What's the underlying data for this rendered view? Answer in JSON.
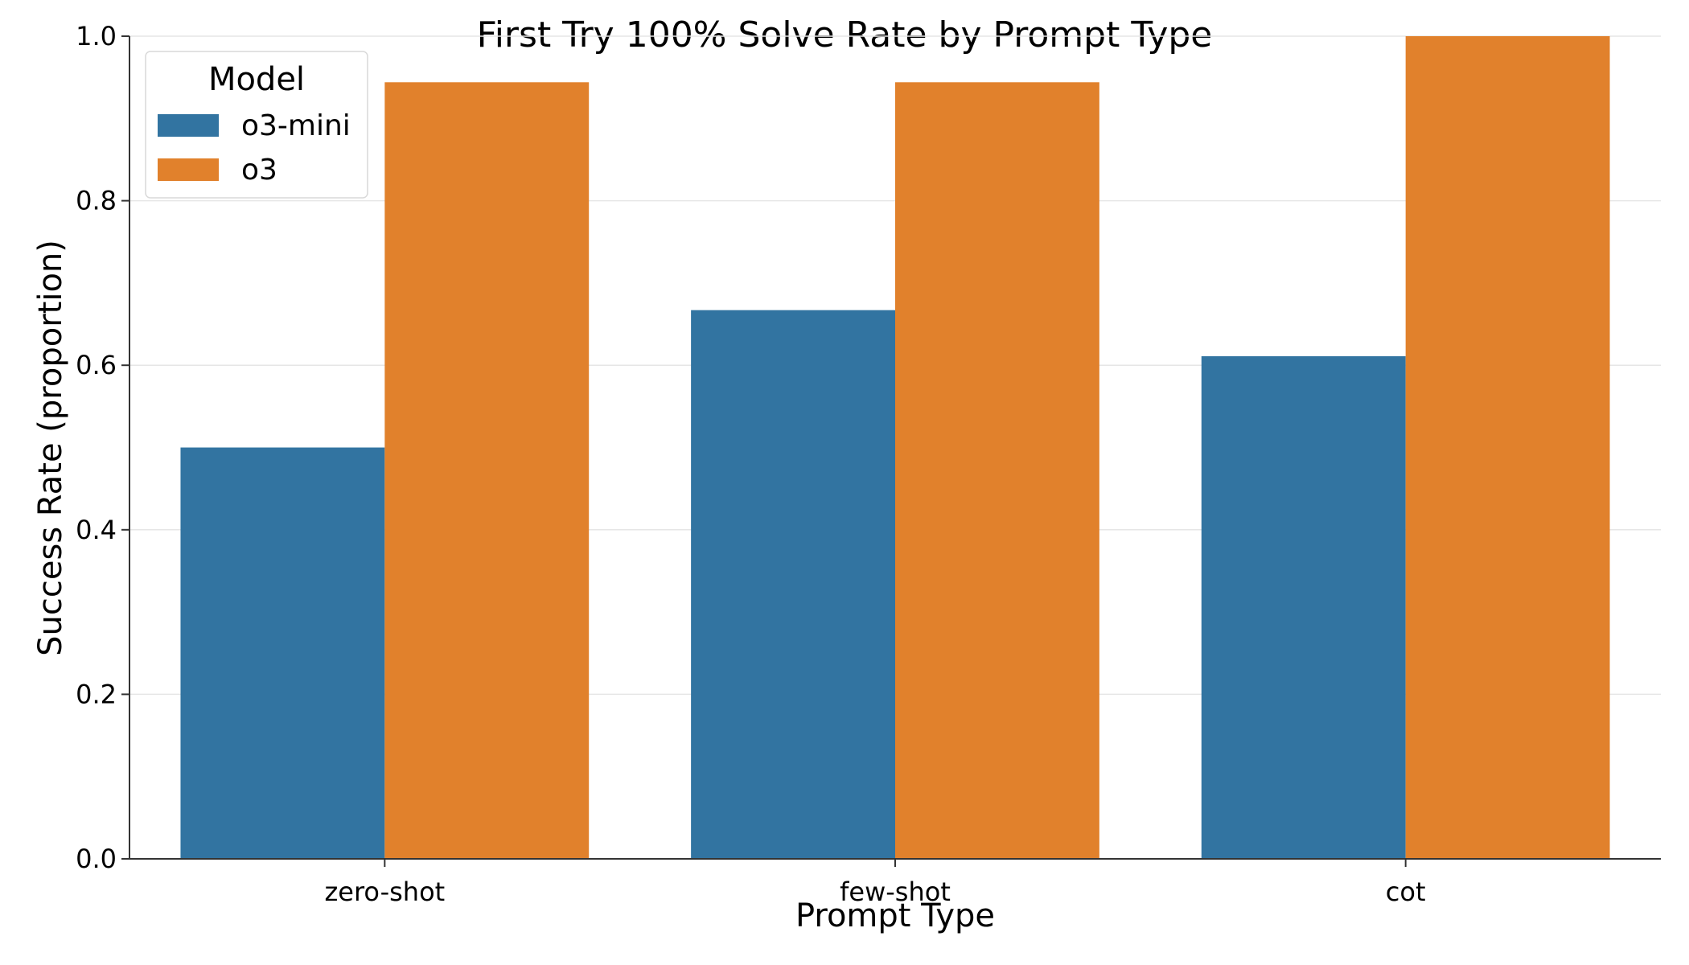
{
  "chart_data": {
    "type": "bar",
    "title": "First Try 100% Solve Rate by Prompt Type",
    "xlabel": "Prompt Type",
    "ylabel": "Success Rate (proportion)",
    "categories": [
      "zero-shot",
      "few-shot",
      "cot"
    ],
    "series": [
      {
        "name": "o3-mini",
        "color": "#3274a1",
        "values": [
          0.5,
          0.667,
          0.611
        ]
      },
      {
        "name": "o3",
        "color": "#e1812c",
        "values": [
          0.944,
          0.944,
          1.0
        ]
      }
    ],
    "ylim": [
      0,
      1.0
    ],
    "yticks": [
      "0.0",
      "0.2",
      "0.4",
      "0.6",
      "0.8",
      "1.0"
    ],
    "grid": "horizontal",
    "legend": {
      "title": "Model",
      "placement": "top-left"
    }
  }
}
